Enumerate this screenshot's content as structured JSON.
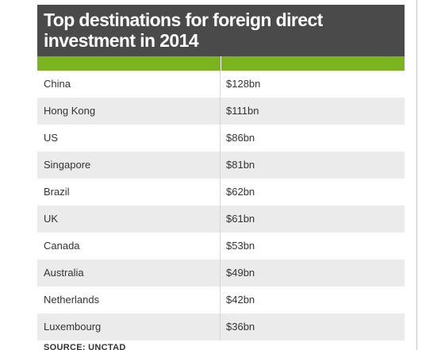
{
  "title_lines": [
    "Top destinations for foreign direct",
    "investment in 2014"
  ],
  "colors": {
    "title_bg": "#4a4a4a",
    "header_green": "#7cb41f",
    "row_alt": "#ebebeb"
  },
  "chart_data": {
    "type": "table",
    "title": "Top destinations for foreign direct investment in 2014",
    "columns": [
      "",
      ""
    ],
    "rows": [
      {
        "country": "China",
        "value": "$128bn"
      },
      {
        "country": "Hong Kong",
        "value": "$111bn"
      },
      {
        "country": "US",
        "value": "$86bn"
      },
      {
        "country": "Singapore",
        "value": "$81bn"
      },
      {
        "country": "Brazil",
        "value": "$62bn"
      },
      {
        "country": "UK",
        "value": "$61bn"
      },
      {
        "country": "Canada",
        "value": "$53bn"
      },
      {
        "country": "Australia",
        "value": "$49bn"
      },
      {
        "country": "Netherlands",
        "value": "$42bn"
      },
      {
        "country": "Luxembourg",
        "value": "$36bn"
      }
    ]
  },
  "source": "SOURCE: UNCTAD"
}
